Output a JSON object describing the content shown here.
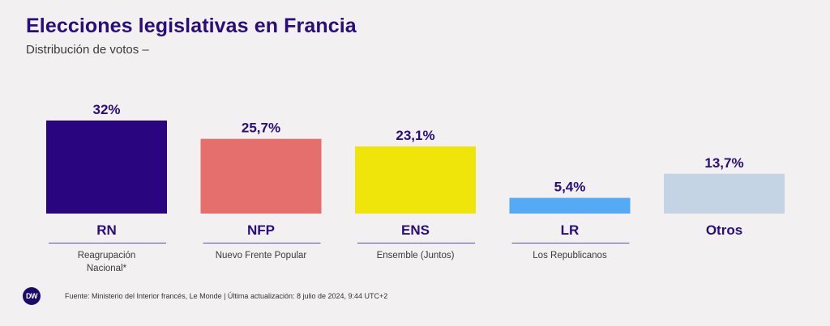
{
  "header": {
    "title": "Elecciones legislativas en Francia",
    "subtitle": "Distribución de votos –"
  },
  "chart_data": {
    "type": "bar",
    "title": "Elecciones legislativas en Francia",
    "subtitle": "Distribución de votos –",
    "categories": [
      "RN",
      "NFP",
      "ENS",
      "LR",
      "Otros"
    ],
    "descriptions": [
      "Reagrupación|Nacional*",
      "Nuevo Frente Popular",
      "Ensemble (Juntos)",
      "Los Republicanos",
      ""
    ],
    "values": [
      32,
      25.7,
      23.1,
      5.4,
      13.7
    ],
    "value_labels": [
      "32%",
      "25,7%",
      "23,1%",
      "5,4%",
      "13,7%"
    ],
    "colors": [
      "#29057f",
      "#e56f6d",
      "#f0e50b",
      "#55aaf5",
      "#c5d4e4"
    ],
    "ylim": [
      0,
      32
    ],
    "xlabel": "",
    "ylabel": "",
    "grid": false
  },
  "footer": {
    "logo_text": "DW",
    "source": "Fuente: Ministerio del Interior francés, Le Monde | Última actualización: 8 julio de 2024, 9:44 UTC+2"
  },
  "colors": {
    "title": "#2a0d7a",
    "background": "#f2f0f1",
    "divider": "#5b4bc4"
  }
}
